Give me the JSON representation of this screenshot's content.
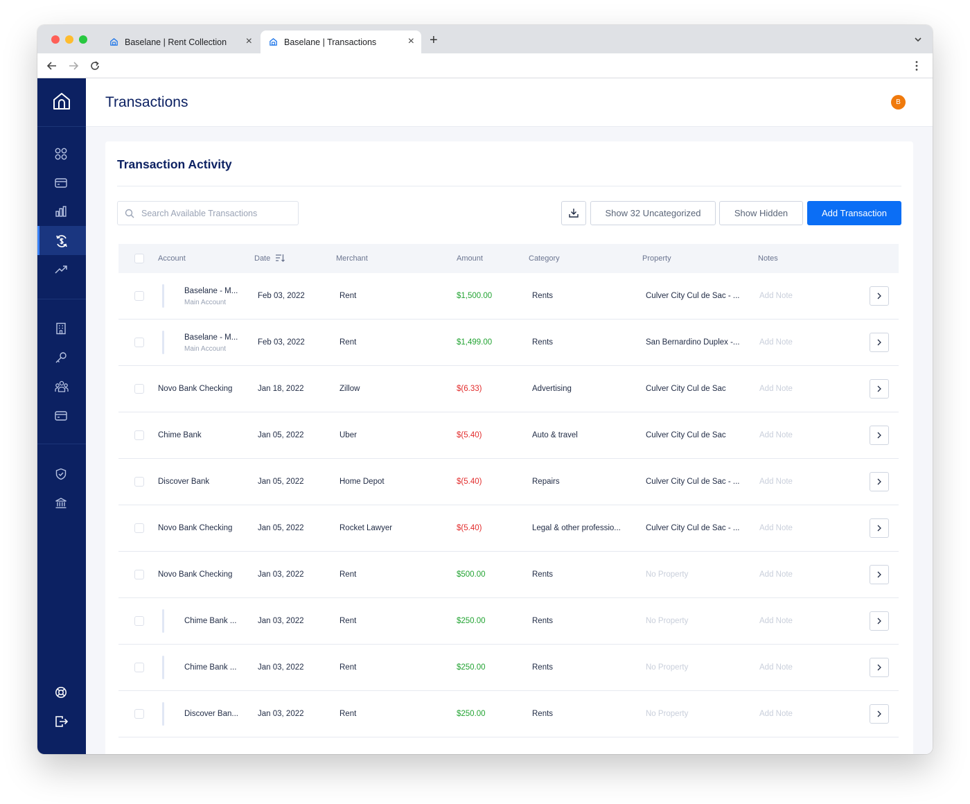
{
  "browser": {
    "tabs": [
      {
        "title": "Baselane | Rent Collection",
        "active": false
      },
      {
        "title": "Baselane | Transactions",
        "active": true
      }
    ],
    "new_tab_label": "+",
    "close_glyph": "×"
  },
  "sidebar": {
    "logo": "baselane-house-icon",
    "items": [
      {
        "icon": "dashboard-icon",
        "active": false
      },
      {
        "icon": "card-icon",
        "active": false
      },
      {
        "icon": "bar-chart-icon",
        "active": false
      },
      {
        "icon": "transactions-icon",
        "active": true
      },
      {
        "icon": "trend-icon",
        "active": false
      },
      {
        "icon": "building-icon",
        "active": false
      },
      {
        "icon": "key-icon",
        "active": false
      },
      {
        "icon": "tenants-icon",
        "active": false
      },
      {
        "icon": "wallet-icon",
        "active": false
      },
      {
        "icon": "shield-icon",
        "active": false
      },
      {
        "icon": "bank-icon",
        "active": false
      },
      {
        "icon": "help-icon",
        "active": false
      },
      {
        "icon": "logout-icon",
        "active": false
      }
    ]
  },
  "header": {
    "title": "Transactions",
    "avatar_initial": "B",
    "avatar_color": "#f07a0c"
  },
  "activity": {
    "title": "Transaction Activity",
    "search_placeholder": "Search Available Transactions",
    "buttons": {
      "uncategorized": "Show 32 Uncategorized",
      "hidden": "Show Hidden",
      "add": "Add Transaction"
    },
    "columns": {
      "account": "Account",
      "date": "Date",
      "merchant": "Merchant",
      "amount": "Amount",
      "category": "Category",
      "property": "Property",
      "notes": "Notes"
    },
    "rows": [
      {
        "account": "Baselane - M...",
        "sub": "Main Account",
        "nested": true,
        "date": "Feb 03, 2022",
        "merchant": "Rent",
        "amount": "$1,500.00",
        "amount_type": "positive",
        "category": "Rents",
        "property": "Culver City Cul de Sac - ...",
        "property_muted": false,
        "note": "Add Note"
      },
      {
        "account": "Baselane - M...",
        "sub": "Main Account",
        "nested": true,
        "date": "Feb 03, 2022",
        "merchant": "Rent",
        "amount": "$1,499.00",
        "amount_type": "positive",
        "category": "Rents",
        "property": "San Bernardino Duplex -...",
        "property_muted": false,
        "note": "Add Note"
      },
      {
        "account": "Novo Bank Checking",
        "sub": "",
        "nested": false,
        "date": "Jan 18, 2022",
        "merchant": "Zillow",
        "amount": "$(6.33)",
        "amount_type": "negative",
        "category": "Advertising",
        "property": "Culver City Cul de Sac",
        "property_muted": false,
        "note": "Add Note"
      },
      {
        "account": "Chime Bank",
        "sub": "",
        "nested": false,
        "date": "Jan 05, 2022",
        "merchant": "Uber",
        "amount": "$(5.40)",
        "amount_type": "negative",
        "category": "Auto & travel",
        "property": "Culver City Cul de Sac",
        "property_muted": false,
        "note": "Add Note"
      },
      {
        "account": "Discover Bank",
        "sub": "",
        "nested": false,
        "date": "Jan 05, 2022",
        "merchant": "Home Depot",
        "amount": "$(5.40)",
        "amount_type": "negative",
        "category": "Repairs",
        "property": "Culver City Cul de Sac - ...",
        "property_muted": false,
        "note": "Add Note"
      },
      {
        "account": "Novo Bank Checking",
        "sub": "",
        "nested": false,
        "date": "Jan 05, 2022",
        "merchant": "Rocket Lawyer",
        "amount": "$(5.40)",
        "amount_type": "negative",
        "category": "Legal & other professio...",
        "property": "Culver City Cul de Sac - ...",
        "property_muted": false,
        "note": "Add Note"
      },
      {
        "account": "Novo Bank Checking",
        "sub": "",
        "nested": false,
        "date": "Jan 03, 2022",
        "merchant": "Rent",
        "amount": "$500.00",
        "amount_type": "positive",
        "category": "Rents",
        "property": "No Property",
        "property_muted": true,
        "note": "Add Note"
      },
      {
        "account": "Chime Bank ...",
        "sub": "",
        "nested": true,
        "date": "Jan 03, 2022",
        "merchant": "Rent",
        "amount": "$250.00",
        "amount_type": "positive",
        "category": "Rents",
        "property": "No Property",
        "property_muted": true,
        "note": "Add Note"
      },
      {
        "account": "Chime Bank ...",
        "sub": "",
        "nested": true,
        "date": "Jan 03, 2022",
        "merchant": "Rent",
        "amount": "$250.00",
        "amount_type": "positive",
        "category": "Rents",
        "property": "No Property",
        "property_muted": true,
        "note": "Add Note"
      },
      {
        "account": "Discover Ban...",
        "sub": "",
        "nested": true,
        "date": "Jan 03, 2022",
        "merchant": "Rent",
        "amount": "$250.00",
        "amount_type": "positive",
        "category": "Rents",
        "property": "No Property",
        "property_muted": true,
        "note": "Add Note"
      }
    ]
  },
  "colors": {
    "sidebar": "#0c2162",
    "primary": "#0b6ef5",
    "positive": "#22a332",
    "negative": "#e22b2b",
    "avatar": "#f07a0c"
  }
}
